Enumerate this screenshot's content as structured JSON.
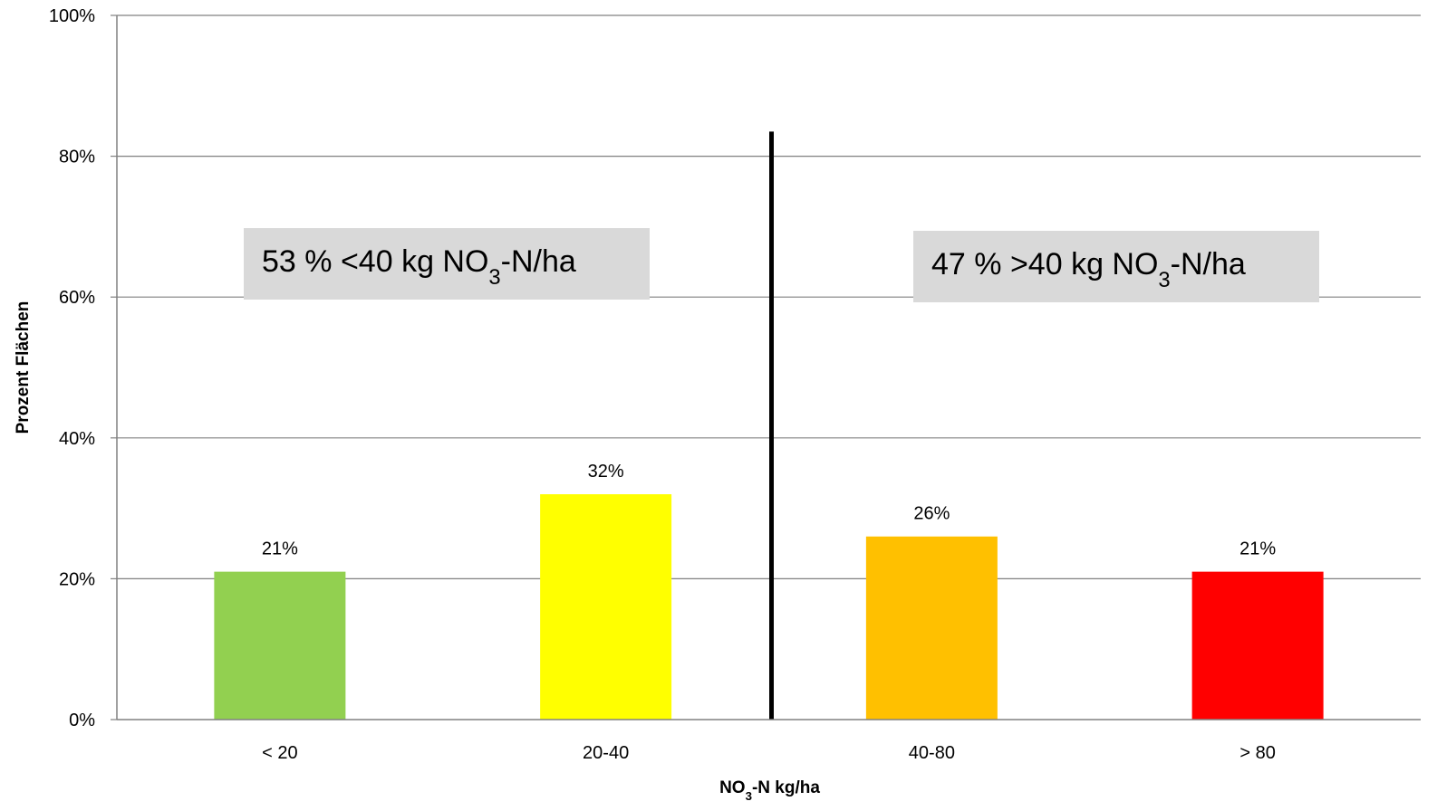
{
  "chart_data": {
    "type": "bar",
    "categories": [
      "< 20",
      "20-40",
      "40-80",
      "> 80"
    ],
    "values": [
      21,
      32,
      26,
      21
    ],
    "data_labels": [
      "21%",
      "32%",
      "26%",
      "21%"
    ],
    "colors": [
      "#92d050",
      "#ffff00",
      "#ffc000",
      "#ff0000"
    ],
    "ylabel": "Prozent Flächen",
    "xlabel": {
      "pre": "NO",
      "sub": "3",
      "post": "-N kg/ha"
    },
    "ylim": [
      0,
      100
    ],
    "yticks": [
      0,
      20,
      40,
      60,
      80,
      100
    ],
    "ytick_labels": [
      "0%",
      "20%",
      "40%",
      "60%",
      "80%",
      "100%"
    ],
    "grid": true,
    "annotations": [
      {
        "pre": "53 % <40 kg NO",
        "sub": "3",
        "post": "-N/ha"
      },
      {
        "pre": "47 % >40 kg NO",
        "sub": "3",
        "post": "-N/ha"
      }
    ],
    "divider": "between 20-40 and 40-80",
    "annotation_box_color": "#d9d9d9",
    "gridline_color": "#808080"
  }
}
